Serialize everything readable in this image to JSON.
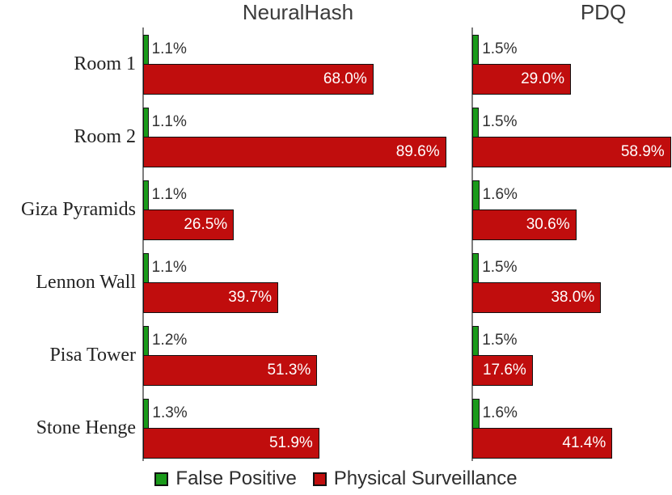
{
  "chart_data": {
    "type": "bar",
    "orientation": "horizontal",
    "categories": [
      "Room 1",
      "Room 2",
      "Giza Pyramids",
      "Lennon Wall",
      "Pisa Tower",
      "Stone Henge"
    ],
    "panels": [
      {
        "title": "NeuralHash",
        "xlim": [
          0,
          92.1
        ],
        "series": [
          {
            "name": "False Positive",
            "color": "#1a9a1a",
            "values": [
              1.1,
              1.1,
              1.1,
              1.1,
              1.2,
              1.3
            ]
          },
          {
            "name": "Physical Surveillance",
            "color": "#c00d0d",
            "values": [
              68.0,
              89.6,
              26.5,
              39.7,
              51.3,
              51.9
            ]
          }
        ]
      },
      {
        "title": "PDQ",
        "xlim": [
          0,
          59.7
        ],
        "series": [
          {
            "name": "False Positive",
            "color": "#1a9a1a",
            "values": [
              1.5,
              1.5,
              1.6,
              1.5,
              1.5,
              1.6
            ]
          },
          {
            "name": "Physical Surveillance",
            "color": "#c00d0d",
            "values": [
              29.0,
              58.9,
              30.6,
              38.0,
              17.6,
              41.4
            ]
          }
        ]
      }
    ],
    "legend": [
      {
        "label": "False Positive",
        "color": "#1a9a1a"
      },
      {
        "label": "Physical Surveillance",
        "color": "#c00d0d"
      }
    ],
    "value_label_format": "percent_one_decimal",
    "grid": false,
    "legend_position": "bottom-center"
  }
}
